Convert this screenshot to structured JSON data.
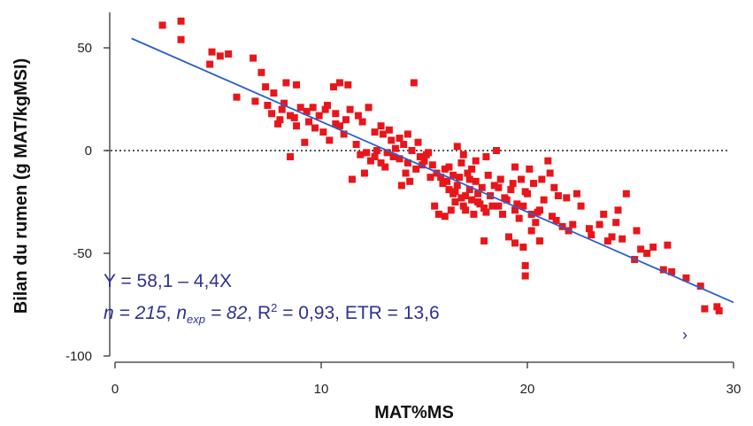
{
  "chart_data": {
    "type": "scatter",
    "title": "",
    "xlabel": "MAT%MS",
    "ylabel": "Bilan du rumen (g MAT/kgMSI)",
    "xlim": [
      0,
      30
    ],
    "ylim": [
      -100,
      70
    ],
    "x_ticks": [
      "0",
      "10",
      "20",
      "30"
    ],
    "y_ticks": [
      "50",
      "0",
      "-50",
      "-100"
    ],
    "grid": false,
    "colors": {
      "points": "#e8161b",
      "fit_line": "#2a5fc9",
      "annotation": "#2e3192",
      "zero_line": "#555555"
    },
    "reference_line": {
      "y": 0,
      "style": "dotted"
    },
    "fit": {
      "intercept": 58.1,
      "slope": -4.4,
      "x_range": [
        0.8,
        30
      ]
    },
    "annotation": {
      "equation": "Y = 58,1 – 4,4X",
      "n_label": "n = 215",
      "n_exp_base": "n",
      "n_exp_sub": "exp",
      "n_exp_value": " = 82",
      "r2_base": "R",
      "r2_sup": "2",
      "r2_value": " = 0,93",
      "etr": "ETR = 13,6"
    },
    "series": [
      {
        "points": [
          [
            2.3,
            61
          ],
          [
            3.2,
            63
          ],
          [
            3.2,
            54
          ],
          [
            4.7,
            48
          ],
          [
            5.1,
            46
          ],
          [
            5.5,
            47
          ],
          [
            4.6,
            42
          ],
          [
            6.7,
            45
          ],
          [
            7.1,
            38
          ],
          [
            7.3,
            31
          ],
          [
            5.9,
            26
          ],
          [
            6.8,
            24
          ],
          [
            7.4,
            22
          ],
          [
            7.7,
            28
          ],
          [
            8.1,
            20
          ],
          [
            8.2,
            23
          ],
          [
            7.6,
            18
          ],
          [
            8.3,
            33
          ],
          [
            8.8,
            32
          ],
          [
            8.5,
            17
          ],
          [
            8.0,
            15
          ],
          [
            8.8,
            12
          ],
          [
            9.0,
            21
          ],
          [
            9.3,
            19
          ],
          [
            9.6,
            21
          ],
          [
            9.9,
            17
          ],
          [
            10.2,
            20
          ],
          [
            10.3,
            22
          ],
          [
            10.7,
            18
          ],
          [
            10.6,
            31
          ],
          [
            10.9,
            33
          ],
          [
            11.3,
            32
          ],
          [
            11.4,
            20
          ],
          [
            11.8,
            17
          ],
          [
            12.0,
            14
          ],
          [
            12.3,
            21
          ],
          [
            12.6,
            9
          ],
          [
            12.9,
            12
          ],
          [
            8.5,
            -3
          ],
          [
            9.2,
            4
          ],
          [
            10.1,
            9
          ],
          [
            10.7,
            13
          ],
          [
            11.1,
            8
          ],
          [
            11.7,
            3
          ],
          [
            12.2,
            -1
          ],
          [
            12.6,
            -3
          ],
          [
            12.9,
            -6
          ],
          [
            13.2,
            -1
          ],
          [
            13.4,
            5
          ],
          [
            13.6,
            1
          ],
          [
            13.8,
            -4
          ],
          [
            14.0,
            3
          ],
          [
            14.2,
            -6
          ],
          [
            14.4,
            0
          ],
          [
            14.6,
            -9
          ],
          [
            14.8,
            -3
          ],
          [
            15.0,
            -5
          ],
          [
            15.2,
            -1
          ],
          [
            15.4,
            -7
          ],
          [
            15.6,
            -11
          ],
          [
            15.8,
            -13
          ],
          [
            14.5,
            33
          ],
          [
            16.0,
            -9
          ],
          [
            16.1,
            -15
          ],
          [
            16.2,
            -19
          ],
          [
            16.4,
            -21
          ],
          [
            16.5,
            -25
          ],
          [
            16.6,
            -17
          ],
          [
            16.7,
            -13
          ],
          [
            16.8,
            -23
          ],
          [
            16.9,
            -27
          ],
          [
            17.0,
            -29
          ],
          [
            17.1,
            -11
          ],
          [
            17.2,
            -19
          ],
          [
            17.3,
            -24
          ],
          [
            17.4,
            -31
          ],
          [
            17.5,
            -15
          ],
          [
            17.6,
            -21
          ],
          [
            17.7,
            -26
          ],
          [
            17.8,
            -18
          ],
          [
            17.9,
            -28
          ],
          [
            18.0,
            -30
          ],
          [
            18.2,
            -22
          ],
          [
            18.4,
            -17
          ],
          [
            18.6,
            -27
          ],
          [
            18.8,
            -31
          ],
          [
            19.0,
            -24
          ],
          [
            19.2,
            -19
          ],
          [
            19.4,
            -29
          ],
          [
            19.6,
            -33
          ],
          [
            19.8,
            -27
          ],
          [
            20.0,
            -21
          ],
          [
            20.2,
            -31
          ],
          [
            20.4,
            -35
          ],
          [
            20.6,
            -29
          ],
          [
            20.8,
            -24
          ],
          [
            16.0,
            -32
          ],
          [
            16.3,
            -29
          ],
          [
            15.5,
            -27
          ],
          [
            15.7,
            -31
          ],
          [
            16.6,
            2
          ],
          [
            16.9,
            -2
          ],
          [
            17.5,
            -5
          ],
          [
            17.9,
            -44
          ],
          [
            19.1,
            -42
          ],
          [
            19.4,
            -45
          ],
          [
            19.8,
            -47
          ],
          [
            19.9,
            -56
          ],
          [
            19.9,
            -61
          ],
          [
            18.0,
            -3
          ],
          [
            18.5,
            0
          ],
          [
            19.4,
            -8
          ],
          [
            20.1,
            -9
          ],
          [
            20.7,
            -14
          ],
          [
            21.1,
            -11
          ],
          [
            21.5,
            -22
          ],
          [
            21.0,
            -5
          ],
          [
            20.2,
            -39
          ],
          [
            20.6,
            -44
          ],
          [
            21.2,
            -32
          ],
          [
            21.7,
            -37
          ],
          [
            22.0,
            -39
          ],
          [
            22.4,
            -21
          ],
          [
            23.1,
            -41
          ],
          [
            23.5,
            -36
          ],
          [
            24.1,
            -42
          ],
          [
            24.4,
            -29
          ],
          [
            24.8,
            -21
          ],
          [
            25.2,
            -53
          ],
          [
            25.5,
            -48
          ],
          [
            26.6,
            -58
          ],
          [
            26.8,
            -46
          ],
          [
            27.0,
            -59
          ],
          [
            28.4,
            -66
          ],
          [
            28.6,
            -77
          ],
          [
            29.2,
            -76
          ],
          [
            29.3,
            -78
          ],
          [
            13.0,
            8
          ],
          [
            13.3,
            10
          ],
          [
            13.8,
            6
          ],
          [
            14.2,
            8
          ],
          [
            14.7,
            4
          ],
          [
            15.1,
            -2
          ],
          [
            12.1,
            -11
          ],
          [
            11.5,
            -14
          ],
          [
            13.9,
            -17
          ],
          [
            14.3,
            -15
          ],
          [
            16.2,
            -8
          ],
          [
            16.8,
            -6
          ],
          [
            17.3,
            -9
          ],
          [
            18.1,
            -12
          ],
          [
            18.7,
            -14
          ],
          [
            19.3,
            -16
          ],
          [
            19.7,
            -14
          ],
          [
            20.3,
            -16
          ],
          [
            21.3,
            -18
          ],
          [
            21.9,
            -23
          ],
          [
            22.6,
            -27
          ],
          [
            23.7,
            -31
          ],
          [
            24.3,
            -35
          ],
          [
            24.6,
            -43
          ],
          [
            25.3,
            -39
          ],
          [
            26.1,
            -47
          ],
          [
            9.7,
            11
          ],
          [
            10.4,
            5
          ],
          [
            11.9,
            -2
          ],
          [
            12.4,
            -5
          ],
          [
            13.1,
            -8
          ],
          [
            14.1,
            -11
          ],
          [
            15.3,
            -13
          ],
          [
            15.9,
            -16
          ],
          [
            16.5,
            -20
          ],
          [
            17.0,
            -22
          ],
          [
            17.6,
            -25
          ],
          [
            18.3,
            -27
          ],
          [
            18.9,
            -23
          ],
          [
            19.5,
            -26
          ],
          [
            20.5,
            -30
          ],
          [
            21.4,
            -34
          ],
          [
            22.2,
            -36
          ],
          [
            23.0,
            -38
          ],
          [
            23.9,
            -44
          ],
          [
            25.8,
            -50
          ],
          [
            27.7,
            -62
          ],
          [
            7.9,
            13
          ],
          [
            8.7,
            16
          ],
          [
            9.4,
            14
          ],
          [
            10.9,
            12
          ],
          [
            11.2,
            15
          ],
          [
            12.7,
            0
          ],
          [
            13.5,
            -3
          ],
          [
            14.9,
            -7
          ],
          [
            16.4,
            -12
          ],
          [
            17.2,
            -14
          ],
          [
            18.6,
            -18
          ],
          [
            19.9,
            -20
          ]
        ]
      }
    ]
  }
}
